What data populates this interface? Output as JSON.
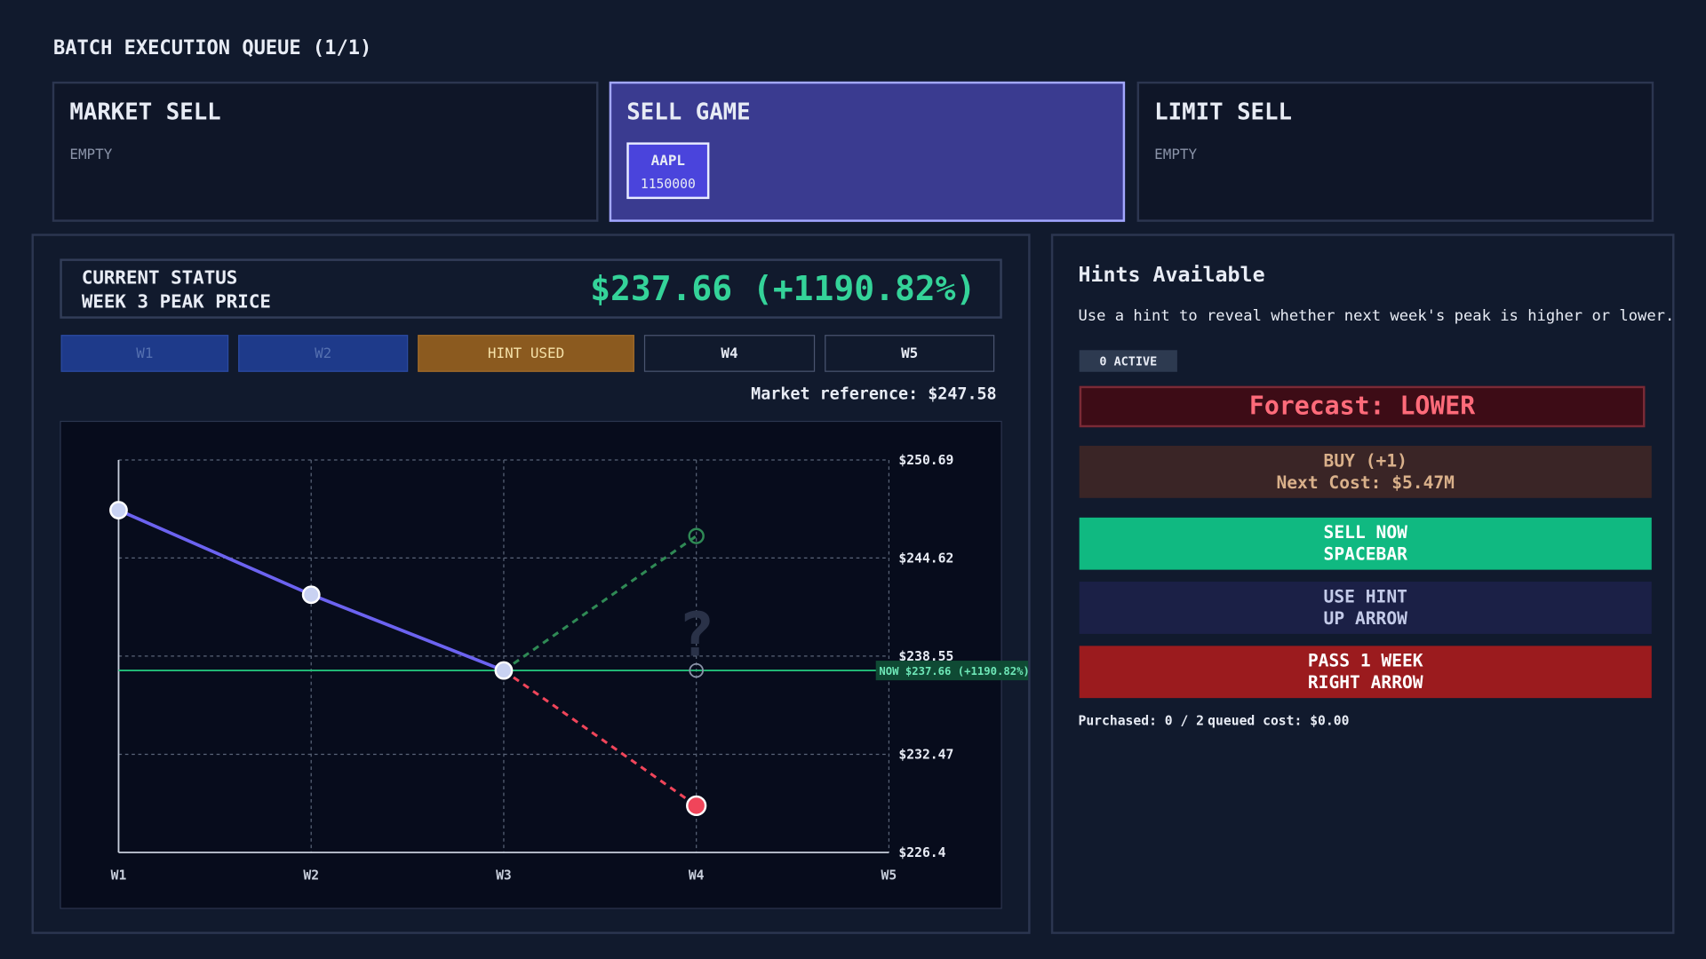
{
  "header": {
    "title": "BATCH EXECUTION QUEUE (1/1)"
  },
  "queue": [
    {
      "title": "MARKET SELL",
      "status": "EMPTY"
    },
    {
      "title": "SELL GAME",
      "ticker": "AAPL",
      "quantity": 1150000
    },
    {
      "title": "LIMIT SELL",
      "status": "EMPTY"
    }
  ],
  "status": {
    "line1": "CURRENT STATUS",
    "line2": "WEEK 3 PEAK PRICE",
    "price": "$237.66 (+1190.82%)"
  },
  "weeks": [
    "W1",
    "W2",
    "HINT USED",
    "W4",
    "W5"
  ],
  "market_reference": "Market reference: $247.58",
  "chart_data": {
    "type": "line",
    "categories": [
      "W1",
      "W2",
      "W3",
      "W4",
      "W5"
    ],
    "ylim": [
      226.4,
      250.69
    ],
    "yticks": [
      {
        "value": 226.4,
        "label": "$226.4"
      },
      {
        "value": 232.47,
        "label": "$232.47"
      },
      {
        "value": 238.55,
        "label": "$238.55"
      },
      {
        "value": 244.62,
        "label": "$244.62"
      },
      {
        "value": 250.69,
        "label": "$250.69"
      }
    ],
    "grid": true,
    "series": [
      {
        "color": "#6c63f0",
        "values": [
          247.58,
          242.35,
          237.66,
          null,
          null
        ]
      },
      {
        "color": "#2f8a55",
        "dashed": true,
        "values": [
          null,
          null,
          237.66,
          245.98,
          null
        ]
      },
      {
        "color": "#f0455a",
        "dashed": true,
        "values": [
          null,
          null,
          237.66,
          229.29,
          null
        ]
      }
    ],
    "now": {
      "value": 237.66,
      "label": "NOW $237.66 (+1190.82%)",
      "color": "#22c07a"
    },
    "annotation": "?"
  },
  "hints": {
    "title": "Hints Available",
    "description": "Use a hint to reveal whether next week's peak is higher or lower.",
    "active": "0 ACTIVE",
    "forecast": "Forecast: LOWER",
    "buttons": [
      [
        "BUY (+1)",
        "Next Cost: $5.47M"
      ],
      [
        "SELL NOW",
        "SPACEBAR"
      ],
      [
        "USE HINT",
        "UP ARROW"
      ],
      [
        "PASS 1 WEEK",
        "RIGHT ARROW"
      ]
    ],
    "purchased": "Purchased: 0 / 2",
    "queued_cost": "queued cost: $0.00"
  }
}
